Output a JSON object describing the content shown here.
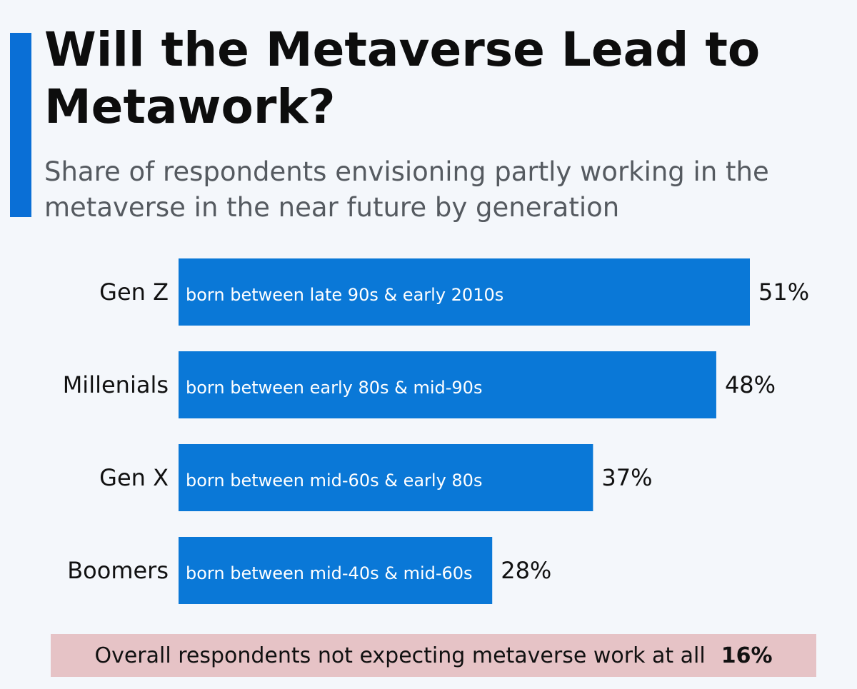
{
  "title": "Will the Metaverse Lead to Metawork?",
  "subtitle": "Share of respondents envisioning partly working in the metaverse in the near future by generation",
  "footer": {
    "text": "Overall respondents not expecting metaverse work at all",
    "value": "16%"
  },
  "colors": {
    "bar": "#0a78d7",
    "accent": "#0a6fd6",
    "footer_bg": "#e6c3c6"
  },
  "chart_data": {
    "type": "bar",
    "orientation": "horizontal",
    "categories": [
      "Gen Z",
      "Millenials",
      "Gen X",
      "Boomers"
    ],
    "bar_notes": [
      "born between late 90s & early 2010s",
      "born between early 80s & mid-90s",
      "born between mid-60s & early 80s",
      "born between mid-40s & mid-60s"
    ],
    "values": [
      51,
      48,
      37,
      28
    ],
    "value_labels": [
      "51%",
      "48%",
      "37%",
      "28%"
    ],
    "xlim": [
      0,
      100
    ],
    "grid": false,
    "legend": "none"
  }
}
